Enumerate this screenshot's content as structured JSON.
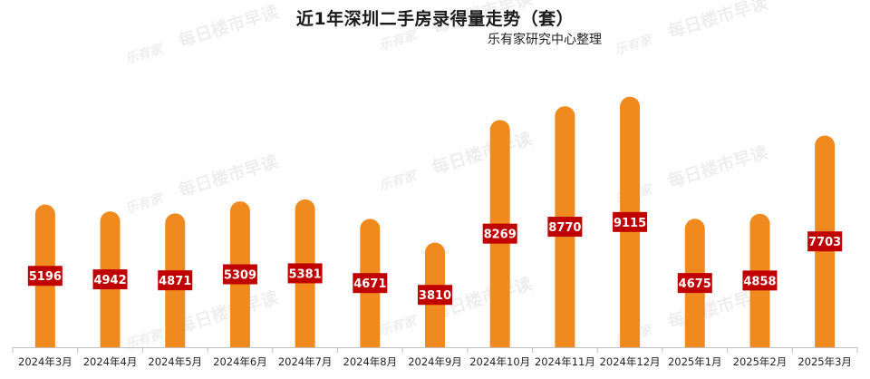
{
  "chart_data": {
    "type": "bar",
    "title": "近1年深圳二手房录得量走势（套）",
    "subtitle": "乐有家研究中心整理",
    "categories": [
      "2024年3月",
      "2024年4月",
      "2024年5月",
      "2024年6月",
      "2024年7月",
      "2024年8月",
      "2024年9月",
      "2024年10月",
      "2024年11月",
      "2024年12月",
      "2025年1月",
      "2025年2月",
      "2025年3月"
    ],
    "series": [
      {
        "values": [
          5196,
          4942,
          4871,
          5309,
          5381,
          4671,
          3810,
          8269,
          8770,
          9115,
          4675,
          4858,
          7703
        ]
      }
    ],
    "ylim": [
      0,
      9500
    ],
    "xlabel": "",
    "ylabel": "",
    "grid": false,
    "colors": {
      "bar": "#F08A1E",
      "label_bg": "#C00000",
      "label_text": "#ffffff",
      "axis": "#bfbfbf"
    }
  },
  "watermark": {
    "logo_text": "乐有家",
    "text": "每日楼市早读"
  }
}
